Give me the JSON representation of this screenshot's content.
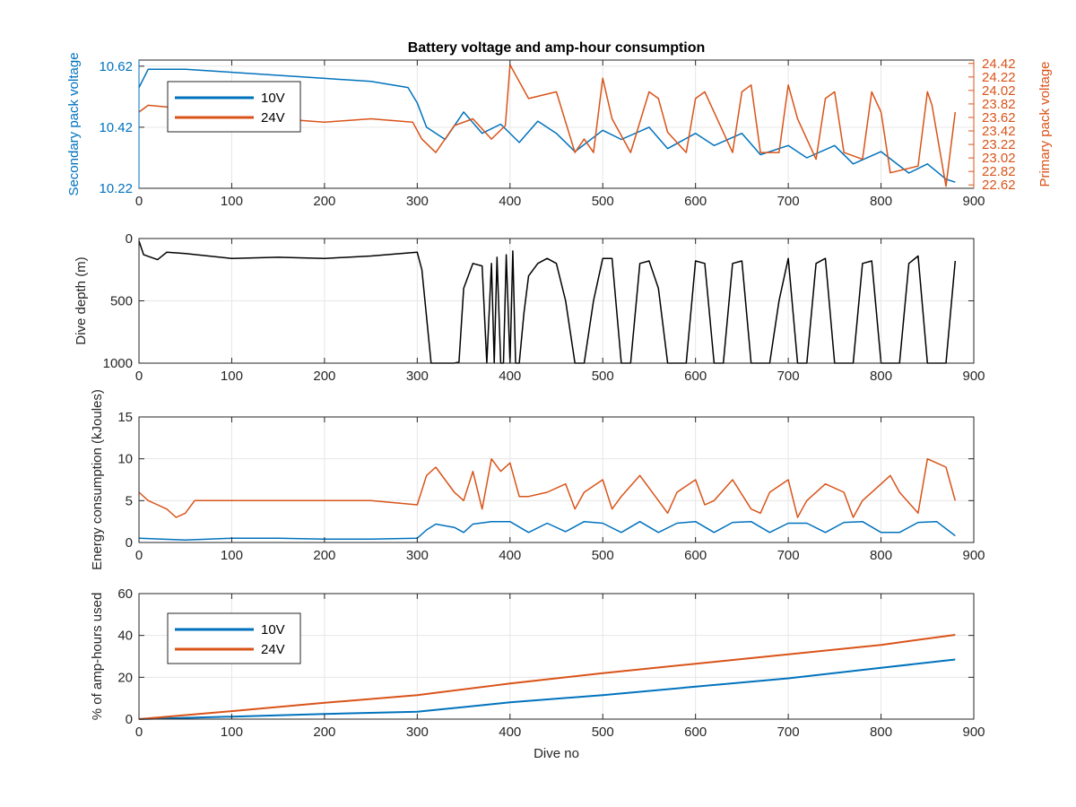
{
  "colors": {
    "blue": "#0072BD",
    "orange": "#D95319",
    "black": "#000000",
    "grid": "#e6e6e6",
    "axis": "#262626"
  },
  "chart_data": [
    {
      "id": "voltage",
      "type": "line",
      "title": "Battery voltage and amp-hour consumption",
      "xlabel": "",
      "xlim": [
        0,
        900
      ],
      "xticks": [
        0,
        100,
        200,
        300,
        400,
        500,
        600,
        700,
        800,
        900
      ],
      "ylabel": "Secondary pack voltage",
      "ylim": [
        10.22,
        10.64
      ],
      "yticks": [
        10.22,
        10.42,
        10.62
      ],
      "ytick_labels": [
        "10.22",
        "10.42",
        "10.62"
      ],
      "y2label": "Primary pack voltage",
      "y2lim": [
        22.57,
        24.47
      ],
      "y2ticks": [
        22.62,
        22.82,
        23.02,
        23.22,
        23.42,
        23.62,
        23.82,
        24.02,
        24.22,
        24.42
      ],
      "y2tick_labels": [
        "22.62",
        "22.82",
        "23.02",
        "23.22",
        "23.42",
        "23.62",
        "23.82",
        "24.02",
        "24.22",
        "24.42"
      ],
      "grid": true,
      "legend": "top-left",
      "series": [
        {
          "name": "10V",
          "axis": "left",
          "color": "#0072BD",
          "x": [
            0,
            10,
            50,
            100,
            150,
            200,
            250,
            290,
            300,
            310,
            330,
            350,
            370,
            390,
            410,
            430,
            450,
            470,
            500,
            520,
            550,
            570,
            600,
            620,
            650,
            670,
            700,
            720,
            750,
            770,
            800,
            830,
            850,
            870,
            880
          ],
          "y": [
            10.55,
            10.61,
            10.61,
            10.6,
            10.59,
            10.58,
            10.57,
            10.55,
            10.5,
            10.42,
            10.38,
            10.47,
            10.4,
            10.43,
            10.37,
            10.44,
            10.4,
            10.34,
            10.41,
            10.38,
            10.42,
            10.35,
            10.4,
            10.36,
            10.4,
            10.33,
            10.36,
            10.32,
            10.36,
            10.3,
            10.34,
            10.27,
            10.3,
            10.25,
            10.24
          ]
        },
        {
          "name": "24V",
          "axis": "right",
          "color": "#D95319",
          "x": [
            0,
            10,
            50,
            100,
            200,
            250,
            295,
            305,
            320,
            340,
            360,
            380,
            395,
            400,
            420,
            450,
            470,
            480,
            490,
            500,
            510,
            530,
            550,
            560,
            570,
            590,
            600,
            610,
            640,
            650,
            660,
            670,
            690,
            700,
            710,
            730,
            740,
            750,
            760,
            780,
            790,
            800,
            810,
            840,
            850,
            855,
            870,
            880
          ],
          "y": [
            23.7,
            23.8,
            23.75,
            23.65,
            23.55,
            23.6,
            23.55,
            23.3,
            23.1,
            23.5,
            23.6,
            23.3,
            23.5,
            24.4,
            23.9,
            24.0,
            23.1,
            23.3,
            23.1,
            24.2,
            23.6,
            23.1,
            24.0,
            23.9,
            23.4,
            23.1,
            23.9,
            24.0,
            23.1,
            24.0,
            24.1,
            23.1,
            23.1,
            24.1,
            23.6,
            23.0,
            23.9,
            24.0,
            23.1,
            23.0,
            24.0,
            23.7,
            22.8,
            22.9,
            24.0,
            23.8,
            22.6,
            23.7
          ]
        }
      ]
    },
    {
      "id": "depth",
      "type": "line",
      "xlabel": "",
      "xlim": [
        0,
        900
      ],
      "xticks": [
        0,
        100,
        200,
        300,
        400,
        500,
        600,
        700,
        800,
        900
      ],
      "ylabel": "Dive depth (m)",
      "ylim": [
        0,
        1000
      ],
      "y_reversed": true,
      "yticks": [
        0,
        500,
        1000
      ],
      "ytick_labels": [
        "0",
        "500",
        "1000"
      ],
      "grid": true,
      "series": [
        {
          "color": "#000000",
          "x": [
            0,
            5,
            20,
            30,
            50,
            100,
            150,
            200,
            250,
            300,
            305,
            315,
            320,
            340,
            345,
            350,
            360,
            370,
            375,
            380,
            383,
            386,
            390,
            393,
            396,
            400,
            403,
            406,
            410,
            415,
            420,
            430,
            440,
            450,
            460,
            470,
            480,
            490,
            500,
            510,
            520,
            530,
            540,
            550,
            560,
            570,
            580,
            590,
            600,
            610,
            620,
            630,
            640,
            650,
            660,
            670,
            680,
            690,
            700,
            710,
            720,
            730,
            740,
            750,
            760,
            770,
            780,
            790,
            800,
            810,
            820,
            830,
            840,
            850,
            860,
            870,
            880
          ],
          "y": [
            20,
            130,
            170,
            110,
            120,
            160,
            150,
            160,
            140,
            110,
            250,
            1000,
            1000,
            1000,
            990,
            400,
            200,
            220,
            1000,
            200,
            1000,
            150,
            1000,
            1000,
            130,
            1000,
            100,
            1000,
            1000,
            600,
            300,
            200,
            160,
            200,
            500,
            1000,
            1000,
            500,
            160,
            160,
            1000,
            1000,
            200,
            180,
            400,
            1000,
            1000,
            1000,
            180,
            200,
            1000,
            1000,
            200,
            180,
            1000,
            1000,
            1000,
            500,
            160,
            1000,
            1000,
            200,
            160,
            1000,
            1000,
            1000,
            200,
            180,
            1000,
            1000,
            1000,
            200,
            140,
            1000,
            1000,
            1000,
            180
          ]
        }
      ]
    },
    {
      "id": "energy",
      "type": "line",
      "xlabel": "",
      "xlim": [
        0,
        900
      ],
      "xticks": [
        0,
        100,
        200,
        300,
        400,
        500,
        600,
        700,
        800,
        900
      ],
      "ylabel": "Energy consumption (kJoules)",
      "ylim": [
        0,
        15
      ],
      "yticks": [
        0,
        5,
        10,
        15
      ],
      "ytick_labels": [
        "0",
        "5",
        "10",
        "15"
      ],
      "grid": true,
      "series": [
        {
          "name": "24V",
          "color": "#D95319",
          "x": [
            0,
            10,
            20,
            30,
            40,
            50,
            60,
            80,
            100,
            150,
            200,
            250,
            300,
            310,
            320,
            340,
            350,
            360,
            370,
            380,
            390,
            400,
            410,
            420,
            440,
            460,
            470,
            480,
            500,
            510,
            520,
            540,
            560,
            570,
            580,
            600,
            610,
            620,
            640,
            660,
            670,
            680,
            700,
            710,
            720,
            740,
            760,
            770,
            780,
            800,
            810,
            820,
            840,
            850,
            860,
            870,
            880
          ],
          "y": [
            6.0,
            5.0,
            4.5,
            4.0,
            3.0,
            3.5,
            5.0,
            5.0,
            5.0,
            5.0,
            5.0,
            5.0,
            4.5,
            8.0,
            9.0,
            6.0,
            5.0,
            8.5,
            4.0,
            10.0,
            8.5,
            9.5,
            5.5,
            5.5,
            6.0,
            7.0,
            4.0,
            6.0,
            7.5,
            4.0,
            5.5,
            8.0,
            5.0,
            3.5,
            6.0,
            7.5,
            4.5,
            5.0,
            7.5,
            4.0,
            3.5,
            6.0,
            7.5,
            3.0,
            5.0,
            7.0,
            6.0,
            3.0,
            5.0,
            7.0,
            8.0,
            6.0,
            3.5,
            10.0,
            9.5,
            9.0,
            5.0
          ]
        },
        {
          "name": "10V",
          "color": "#0072BD",
          "x": [
            0,
            50,
            100,
            150,
            200,
            250,
            300,
            310,
            320,
            340,
            350,
            360,
            380,
            400,
            420,
            440,
            460,
            480,
            500,
            520,
            540,
            560,
            580,
            600,
            620,
            640,
            660,
            680,
            700,
            720,
            740,
            760,
            780,
            800,
            820,
            840,
            860,
            880
          ],
          "y": [
            0.5,
            0.3,
            0.5,
            0.5,
            0.4,
            0.4,
            0.5,
            1.5,
            2.2,
            1.8,
            1.2,
            2.2,
            2.5,
            2.5,
            1.2,
            2.3,
            1.3,
            2.5,
            2.3,
            1.2,
            2.5,
            1.2,
            2.3,
            2.5,
            1.2,
            2.4,
            2.5,
            1.2,
            2.3,
            2.3,
            1.2,
            2.4,
            2.5,
            1.2,
            1.2,
            2.4,
            2.5,
            0.8
          ]
        }
      ]
    },
    {
      "id": "amphours",
      "type": "line",
      "xlabel": "Dive no",
      "xlim": [
        0,
        900
      ],
      "xticks": [
        0,
        100,
        200,
        300,
        400,
        500,
        600,
        700,
        800,
        900
      ],
      "ylabel": "% of amp-hours used",
      "ylim": [
        0,
        60
      ],
      "yticks": [
        0,
        20,
        40,
        60
      ],
      "ytick_labels": [
        "0",
        "20",
        "40",
        "60"
      ],
      "grid": true,
      "legend": "top-left",
      "series": [
        {
          "name": "10V",
          "color": "#0072BD",
          "x": [
            0,
            100,
            200,
            300,
            400,
            500,
            600,
            700,
            800,
            880
          ],
          "y": [
            0,
            1.2,
            2.5,
            3.5,
            8,
            11.5,
            15.5,
            19.5,
            24.5,
            28.5
          ]
        },
        {
          "name": "24V",
          "color": "#D95319",
          "x": [
            0,
            100,
            200,
            300,
            400,
            500,
            600,
            700,
            800,
            880
          ],
          "y": [
            0,
            3.8,
            7.8,
            11.5,
            17,
            22,
            26.5,
            31,
            35.5,
            40.3
          ]
        }
      ]
    }
  ]
}
